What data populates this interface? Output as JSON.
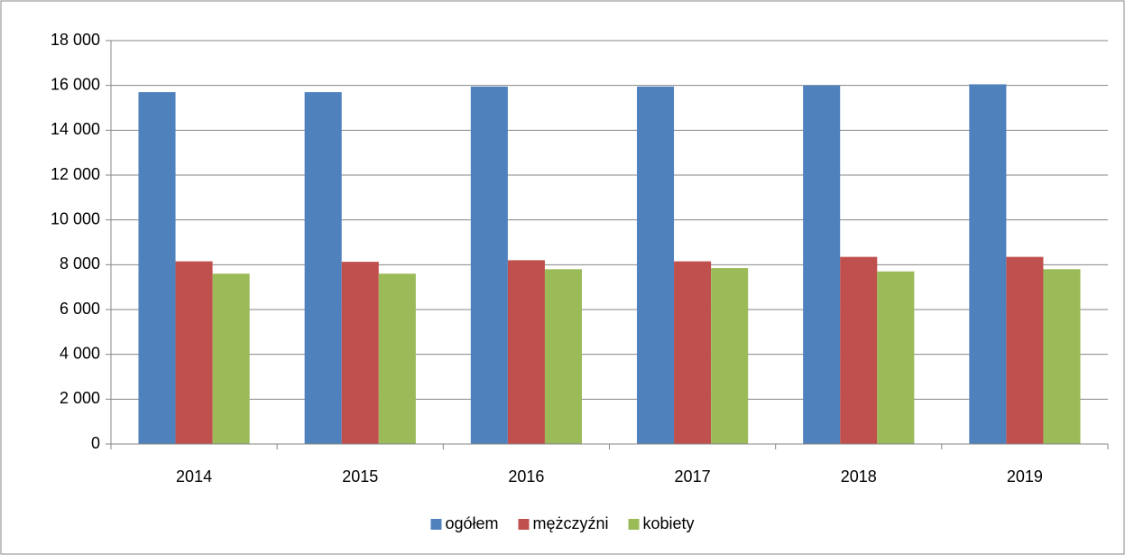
{
  "chart_data": {
    "type": "bar",
    "categories": [
      "2014",
      "2015",
      "2016",
      "2017",
      "2018",
      "2019"
    ],
    "series": [
      {
        "name": "ogółem",
        "color": "#4f81bd",
        "values": [
          15700,
          15700,
          15950,
          15950,
          16000,
          16050
        ]
      },
      {
        "name": "mężczyźni",
        "color": "#c0504d",
        "values": [
          8150,
          8130,
          8200,
          8150,
          8350,
          8350
        ]
      },
      {
        "name": "kobiety",
        "color": "#9bbb59",
        "values": [
          7600,
          7600,
          7800,
          7850,
          7700,
          7800
        ]
      }
    ],
    "ylim": [
      0,
      18000
    ],
    "yticks": [
      0,
      {
        "value": 2000,
        "label": "2 000"
      },
      {
        "value": 4000,
        "label": "4 000"
      },
      {
        "value": 6000,
        "label": "6 000"
      },
      {
        "value": 8000,
        "label": "8 000"
      },
      {
        "value": 10000,
        "label": "10 000"
      },
      {
        "value": 12000,
        "label": "12 000"
      },
      {
        "value": 14000,
        "label": "14 000"
      },
      {
        "value": 16000,
        "label": "16 000"
      },
      {
        "value": 18000,
        "label": "18 000"
      }
    ],
    "grid": true,
    "legend": "bottom"
  }
}
